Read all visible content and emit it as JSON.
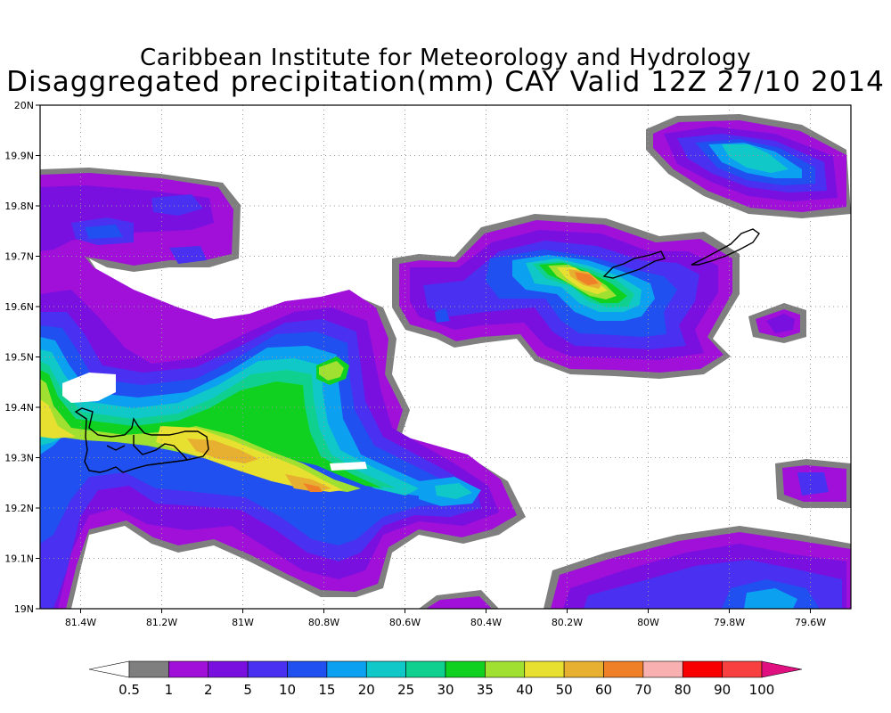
{
  "header": {
    "title_line1": "Caribbean Institute for Meteorology and Hydrology",
    "title_line2": "Disaggregated precipitation(mm) CAY Valid 12Z 27/10 2014"
  },
  "map": {
    "lon_range": [
      -81.5,
      -79.5
    ],
    "lat_range": [
      19.0,
      20.0
    ],
    "lon_ticks": [
      "81.4W",
      "81.2W",
      "81W",
      "80.8W",
      "80.6W",
      "80.4W",
      "80.2W",
      "80W",
      "79.8W",
      "79.6W"
    ],
    "lat_ticks": [
      "20N",
      "19.9N",
      "19.8N",
      "19.7N",
      "19.6N",
      "19.5N",
      "19.4N",
      "19.3N",
      "19.2N",
      "19.1N",
      "19N"
    ],
    "grid": "dotted"
  },
  "colorbar": {
    "labels": [
      "0.5",
      "1",
      "2",
      "5",
      "10",
      "15",
      "20",
      "25",
      "30",
      "35",
      "40",
      "50",
      "60",
      "70",
      "80",
      "90",
      "100"
    ],
    "colors": [
      "#ffffff",
      "#7f7f7f",
      "#a010d8",
      "#7a10e0",
      "#4a30f0",
      "#2050f0",
      "#0ca0f0",
      "#10c8c8",
      "#10d090",
      "#10d020",
      "#a0e030",
      "#e8e030",
      "#e8b030",
      "#f08028",
      "#f8b0b0",
      "#f80000",
      "#f84040",
      "#e01080"
    ]
  }
}
